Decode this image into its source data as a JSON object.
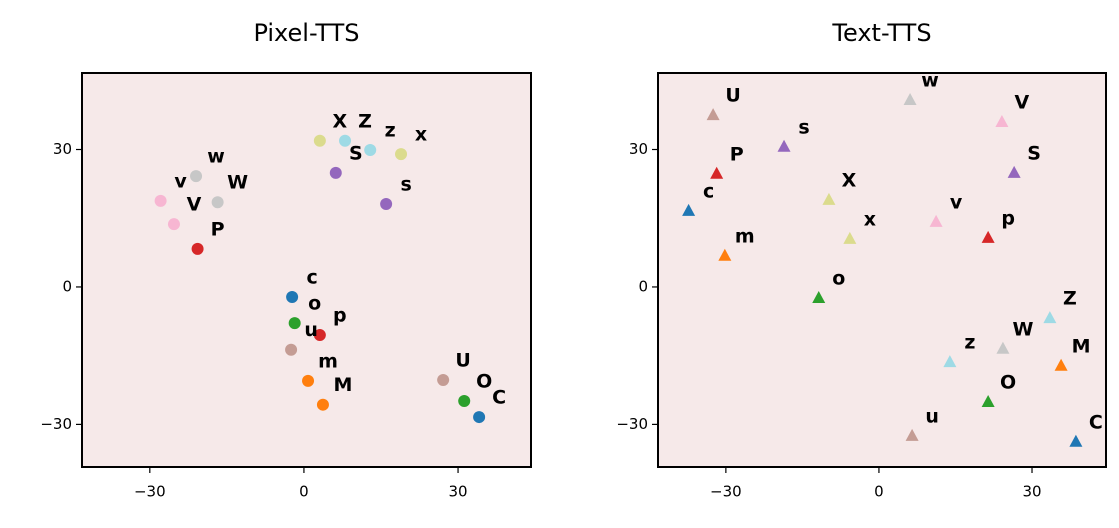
{
  "chart_data": [
    {
      "type": "scatter",
      "title": "Pixel-TTS",
      "marker": "circle",
      "background": "#f6e9e9",
      "labels": [
        "X",
        "Z",
        "z",
        "x",
        "S",
        "s",
        "w",
        "W",
        "v",
        "V",
        "P",
        "c",
        "o",
        "p",
        "u",
        "m",
        "M",
        "U",
        "O",
        "C"
      ],
      "x": [
        3.1,
        8.0,
        12.9,
        18.9,
        6.2,
        16.0,
        -21.0,
        -16.8,
        -27.9,
        -25.3,
        -20.7,
        -2.3,
        -1.8,
        3.1,
        -2.5,
        0.8,
        3.7,
        27.1,
        31.2,
        34.1
      ],
      "values": [
        31.9,
        31.9,
        29.9,
        29.0,
        24.9,
        18.1,
        24.2,
        18.5,
        18.8,
        13.7,
        8.3,
        -2.2,
        -7.9,
        -10.5,
        -13.7,
        -20.5,
        -25.7,
        -20.3,
        -24.9,
        -28.4
      ],
      "colors": [
        "#dbdb8d",
        "#9edae5",
        "#9edae5",
        "#dbdb8d",
        "#9467bd",
        "#9467bd",
        "#c7c7c7",
        "#c7c7c7",
        "#f7b6d2",
        "#f7b6d2",
        "#d62728",
        "#1f77b4",
        "#2ca02c",
        "#d62728",
        "#c49c94",
        "#ff7f0e",
        "#ff7f0e",
        "#c49c94",
        "#2ca02c",
        "#1f77b4"
      ],
      "xlim": [
        -43.2,
        44.2
      ],
      "ylim": [
        -39.3,
        46.7
      ],
      "xticks": [
        {
          "value": -30,
          "label": "−30"
        },
        0,
        30
      ],
      "yticks": [
        {
          "value": -30,
          "label": "−30"
        },
        0,
        30
      ]
    },
    {
      "type": "scatter",
      "title": "Text-TTS",
      "marker": "triangle",
      "background": "#f6e9e9",
      "labels": [
        "U",
        "w",
        "V",
        "s",
        "P",
        "S",
        "c",
        "X",
        "v",
        "x",
        "p",
        "m",
        "o",
        "Z",
        "W",
        "M",
        "z",
        "O",
        "u",
        "C"
      ],
      "x": [
        -32.5,
        6.1,
        24.1,
        -18.6,
        -31.8,
        26.5,
        -37.3,
        -9.8,
        11.2,
        -5.7,
        21.4,
        -30.2,
        -11.8,
        33.5,
        24.3,
        35.7,
        13.9,
        21.4,
        6.5,
        38.6
      ],
      "values": [
        37.5,
        40.8,
        36.0,
        30.6,
        24.7,
        24.9,
        16.6,
        19.0,
        14.2,
        10.5,
        10.7,
        6.8,
        -2.4,
        -6.8,
        -13.5,
        -17.2,
        -16.4,
        -25.1,
        -32.5,
        -33.8
      ],
      "colors": [
        "#c49c94",
        "#c7c7c7",
        "#f7b6d2",
        "#9467bd",
        "#d62728",
        "#9467bd",
        "#1f77b4",
        "#dbdb8d",
        "#f7b6d2",
        "#dbdb8d",
        "#d62728",
        "#ff7f0e",
        "#2ca02c",
        "#9edae5",
        "#c7c7c7",
        "#ff7f0e",
        "#9edae5",
        "#2ca02c",
        "#c49c94",
        "#1f77b4"
      ],
      "xlim": [
        -43.3,
        44.5
      ],
      "ylim": [
        -39.3,
        46.7
      ],
      "xticks": [
        {
          "value": -30,
          "label": "−30"
        },
        0,
        30
      ],
      "yticks": [
        {
          "value": -30,
          "label": "−30"
        },
        0,
        30
      ]
    }
  ]
}
